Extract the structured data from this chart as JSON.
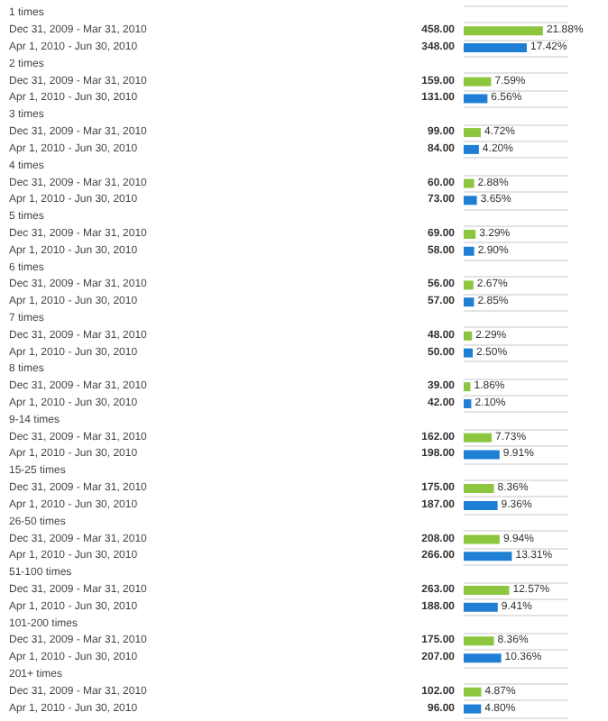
{
  "chart_data": {
    "type": "bar",
    "orientation": "horizontal",
    "grid": "y",
    "categories": [
      "1 times",
      "Dec 31, 2009 - Mar 31, 2010",
      "Apr 1, 2010 - Jun 30, 2010",
      "2 times",
      "Dec 31, 2009 - Mar 31, 2010",
      "Apr 1, 2010 - Jun 30, 2010",
      "3 times",
      "Dec 31, 2009 - Mar 31, 2010",
      "Apr 1, 2010 - Jun 30, 2010",
      "4 times",
      "Dec 31, 2009 - Mar 31, 2010",
      "Apr 1, 2010 - Jun 30, 2010",
      "5 times",
      "Dec 31, 2009 - Mar 31, 2010",
      "Apr 1, 2010 - Jun 30, 2010",
      "6 times",
      "Dec 31, 2009 - Mar 31, 2010",
      "Apr 1, 2010 - Jun 30, 2010",
      "7 times",
      "Dec 31, 2009 - Mar 31, 2010",
      "Apr 1, 2010 - Jun 30, 2010",
      "8 times",
      "Dec 31, 2009 - Mar 31, 2010",
      "Apr 1, 2010 - Jun 30, 2010",
      "9-14 times",
      "Dec 31, 2009 - Mar 31, 2010",
      "Apr 1, 2010 - Jun 30, 2010",
      "15-25 times",
      "Dec 31, 2009 - Mar 31, 2010",
      "Apr 1, 2010 - Jun 30, 2010",
      "26-50 times",
      "Dec 31, 2009 - Mar 31, 2010",
      "Apr 1, 2010 - Jun 30, 2010",
      "51-100 times",
      "Dec 31, 2009 - Mar 31, 2010",
      "Apr 1, 2010 - Jun 30, 2010",
      "101-200 times",
      "Dec 31, 2009 - Mar 31, 2010",
      "Apr 1, 2010 - Jun 30, 2010",
      "201+ times",
      "Dec 31, 2009 - Mar 31, 2010",
      "Apr 1, 2010 - Jun 30, 2010"
    ],
    "series": [
      {
        "color": "#8cc63f",
        "values": [
          null,
          21.88,
          null,
          null,
          7.59,
          null,
          null,
          4.72,
          null,
          null,
          2.88,
          null,
          null,
          3.29,
          null,
          null,
          2.67,
          null,
          null,
          2.29,
          null,
          null,
          1.86,
          null,
          null,
          7.73,
          null,
          null,
          8.36,
          null,
          null,
          9.94,
          null,
          null,
          12.57,
          null,
          null,
          8.36,
          null,
          null,
          4.87,
          null
        ],
        "value_labels": [
          null,
          "21.88%",
          null,
          null,
          "7.59%",
          null,
          null,
          "4.72%",
          null,
          null,
          "2.88%",
          null,
          null,
          "3.29%",
          null,
          null,
          "2.67%",
          null,
          null,
          "2.29%",
          null,
          null,
          "1.86%",
          null,
          null,
          "7.73%",
          null,
          null,
          "8.36%",
          null,
          null,
          "9.94%",
          null,
          null,
          "12.57%",
          null,
          null,
          "8.36%",
          null,
          null,
          "4.87%",
          null
        ]
      },
      {
        "color": "#1f7fd4",
        "values": [
          null,
          null,
          17.42,
          null,
          null,
          6.56,
          null,
          null,
          4.2,
          null,
          null,
          3.65,
          null,
          null,
          2.9,
          null,
          null,
          2.85,
          null,
          null,
          2.5,
          null,
          null,
          2.1,
          null,
          null,
          9.91,
          null,
          null,
          9.36,
          null,
          null,
          13.31,
          null,
          null,
          9.41,
          null,
          null,
          10.36,
          null,
          null,
          4.8
        ],
        "value_labels": [
          null,
          null,
          "17.42%",
          null,
          null,
          "6.56%",
          null,
          null,
          "4.20%",
          null,
          null,
          "3.65%",
          null,
          null,
          "2.90%",
          null,
          null,
          "2.85%",
          null,
          null,
          "2.50%",
          null,
          null,
          "2.10%",
          null,
          null,
          "9.91%",
          null,
          null,
          "9.36%",
          null,
          null,
          "13.31%",
          null,
          null,
          "9.41%",
          null,
          null,
          "10.36%",
          null,
          null,
          "4.80%"
        ]
      }
    ],
    "annotations": [
      "458.00",
      "348.00",
      "159.00",
      "131.00",
      "99.00",
      "84.00",
      "60.00",
      "73.00",
      "69.00",
      "58.00",
      "56.00",
      "57.00",
      "48.00",
      "50.00",
      "39.00",
      "42.00",
      "162.00",
      "198.00",
      "175.00",
      "187.00",
      "208.00",
      "266.00",
      "263.00",
      "188.00",
      "175.00",
      "207.00",
      "102.00",
      "96.00"
    ]
  }
}
